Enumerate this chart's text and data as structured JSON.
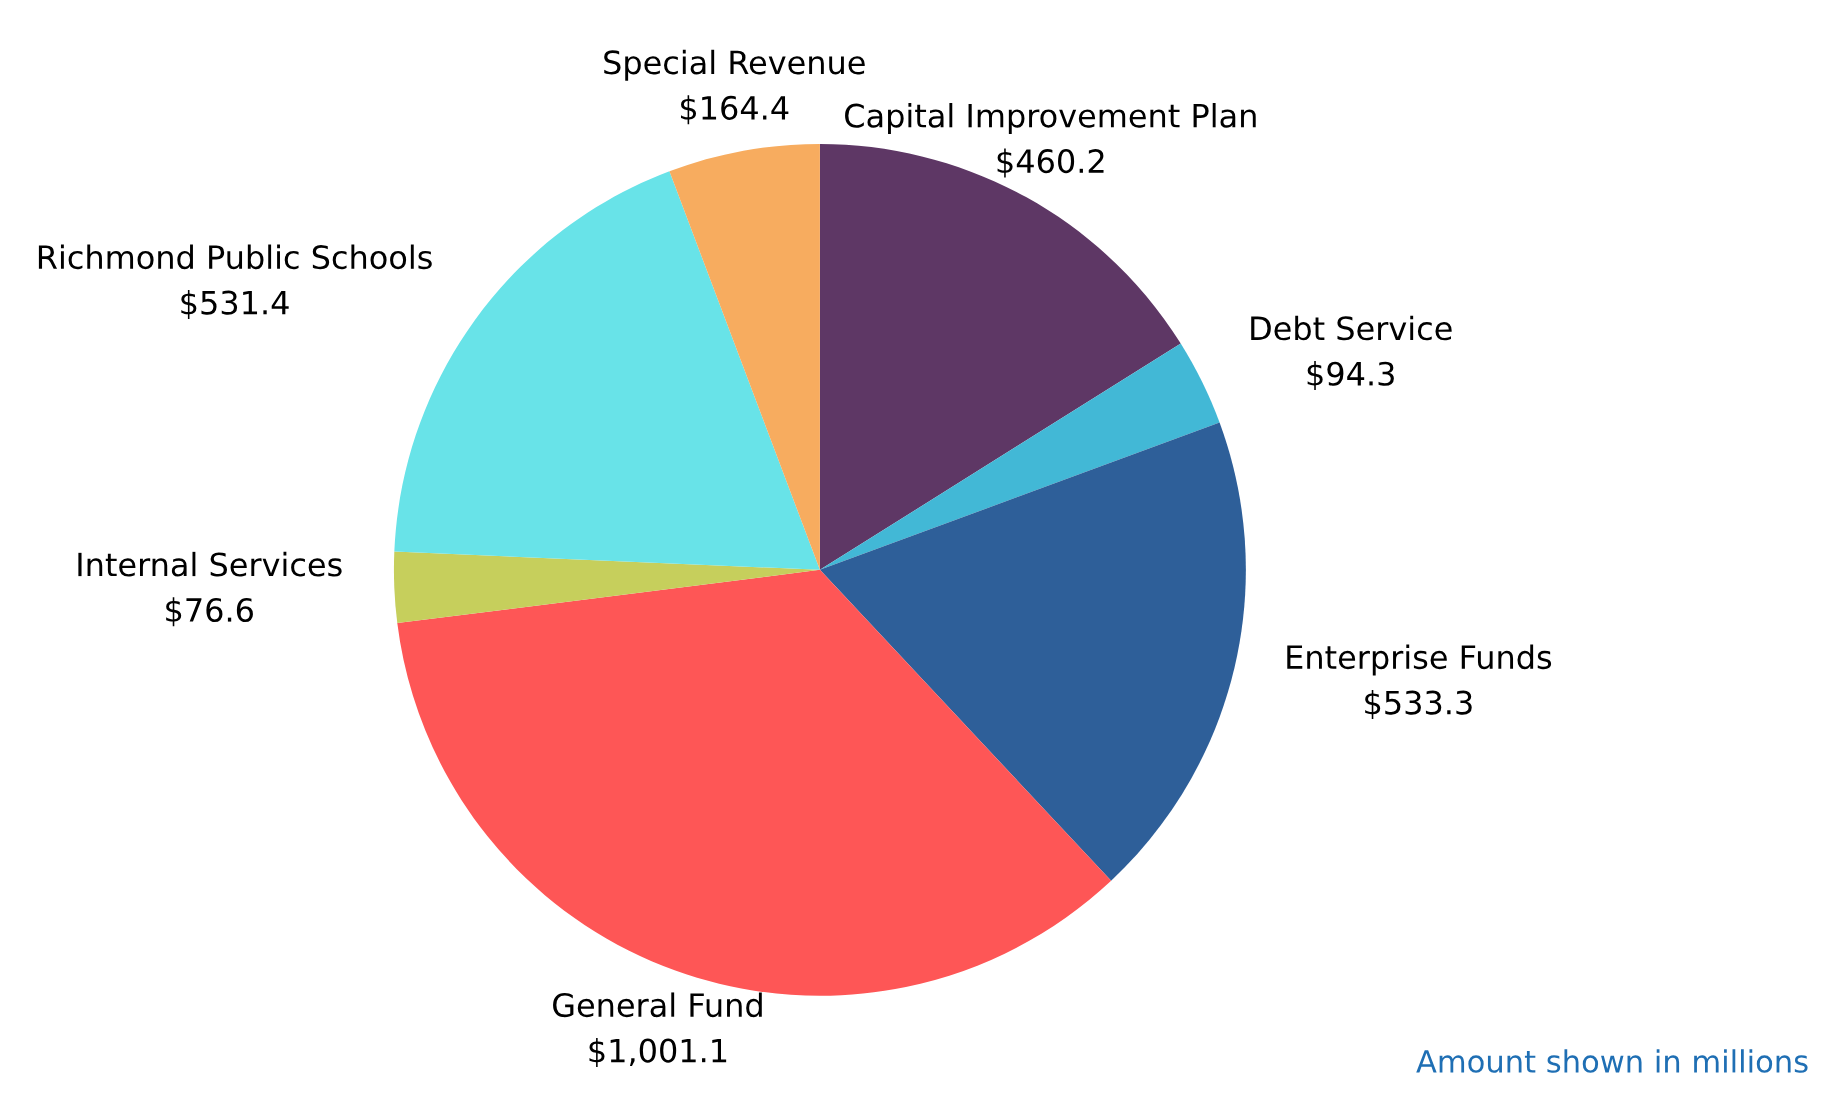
{
  "chart_data": {
    "type": "pie",
    "categories": [
      "Capital Improvement Plan",
      "Debt Service",
      "Enterprise Funds",
      "General Fund",
      "Internal Services",
      "Richmond Public Schools",
      "Special Revenue"
    ],
    "values": [
      460.2,
      94.3,
      533.3,
      1001.1,
      76.6,
      531.4,
      164.4
    ],
    "value_labels": [
      "$460.2",
      "$94.3",
      "$533.3",
      "$1,001.1",
      "$76.6",
      "$531.4",
      "$164.4"
    ],
    "colors": [
      "#5e3765",
      "#42b8d6",
      "#2e5f99",
      "#fe5656",
      "#c6cf5c",
      "#68e3e8",
      "#f7ac5f"
    ],
    "annotations": [
      "Amount shown in millions"
    ],
    "legend": false
  }
}
